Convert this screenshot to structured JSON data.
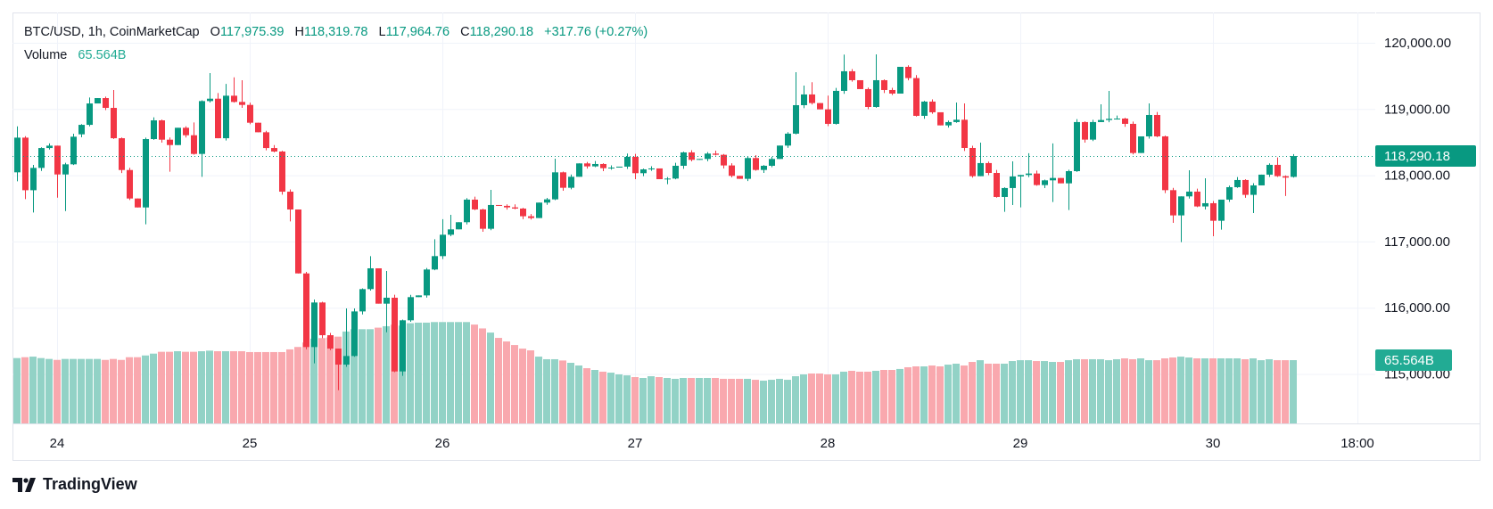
{
  "header": {
    "symbol": "BTC/USD, 1h, CoinMarketCap",
    "o_label": "O",
    "o": "117,975.39",
    "h_label": "H",
    "h": "118,319.78",
    "l_label": "L",
    "l": "117,964.76",
    "c_label": "C",
    "c": "118,290.18",
    "change": "+317.76 (+0.27%)"
  },
  "volume_legend": {
    "label": "Volume",
    "value": "65.564B"
  },
  "price_axis": {
    "ticks": [
      "120,000.00",
      "119,000.00",
      "118,000.00",
      "117,000.00",
      "116,000.00",
      "115,000.00"
    ],
    "last_price_label": "118,290.18",
    "volume_label": "65.564B"
  },
  "time_axis": {
    "ticks": [
      "24",
      "25",
      "26",
      "27",
      "28",
      "29",
      "30",
      "18:00"
    ]
  },
  "branding": {
    "logo_text": "TradingView"
  },
  "colors": {
    "up": "#089981",
    "down": "#f23645",
    "volume_up": "#92d2c6",
    "volume_down": "#f9a8ae",
    "grid": "#f0f3fa",
    "border": "#e0e3eb",
    "text": "#131722",
    "volume_tag": "#22ab94"
  },
  "chart_data": {
    "type": "candlestick",
    "title": "BTC/USD, 1h, CoinMarketCap",
    "interval": "1h",
    "ylim": [
      114450,
      120400
    ],
    "price_ticks": [
      120000,
      119000,
      118000,
      117000,
      116000,
      115000
    ],
    "time_tick_labels": [
      "24",
      "25",
      "26",
      "27",
      "28",
      "29",
      "30",
      "18:00"
    ],
    "time_tick_candle_index": [
      5,
      29,
      53,
      77,
      101,
      125,
      149,
      167
    ],
    "last": {
      "open": 117975.39,
      "high": 118319.78,
      "low": 117964.76,
      "close": 118290.18,
      "change": 317.76,
      "change_pct": 0.27,
      "volume_b": 65.564
    },
    "first_open": 118044,
    "open_overrides": {
      "8": 118618,
      "159": 117975.39
    },
    "close": [
      118568,
      117774,
      118111,
      118411,
      118447,
      118012,
      118165,
      118582,
      118761,
      119084,
      119165,
      119017,
      118559,
      118079,
      117649,
      117514,
      118546,
      118829,
      118537,
      118456,
      118717,
      118604,
      118322,
      119120,
      119156,
      118559,
      119201,
      119107,
      119062,
      118793,
      118649,
      118411,
      118358,
      117752,
      117483,
      116518,
      115406,
      116079,
      115585,
      115383,
      115141,
      115271,
      115944,
      116281,
      116595,
      116061,
      116151,
      115038,
      115810,
      116160,
      116186,
      116577,
      116779,
      117102,
      117183,
      117291,
      117632,
      117484,
      117192,
      117551,
      117538,
      117515,
      117497,
      117381,
      117354,
      117587,
      117636,
      118044,
      117811,
      117977,
      118179,
      118134,
      118170,
      118107,
      118116,
      118130,
      118278,
      118031,
      118089,
      118103,
      117941,
      117950,
      118143,
      118345,
      118233,
      118246,
      118327,
      118309,
      118148,
      117991,
      117946,
      118260,
      118080,
      118143,
      118246,
      118448,
      118628,
      119058,
      119220,
      119090,
      118995,
      118776,
      119274,
      119570,
      119435,
      119301,
      119031,
      119435,
      119287,
      119233,
      119637,
      119467,
      118897,
      119112,
      118951,
      118753,
      118803,
      118838,
      118412,
      117986,
      118184,
      118035,
      117672,
      117807,
      117982,
      118004,
      118026,
      117852,
      117923,
      117959,
      117878,
      118062,
      118803,
      118538,
      118803,
      118834,
      118852,
      118856,
      118776,
      118336,
      118587,
      118910,
      118587,
      117775,
      117394,
      117681,
      117753,
      117529,
      117578,
      117313,
      117632,
      117820,
      117928,
      117704,
      117847,
      118009,
      118157,
      117986,
      117964,
      118290.18
    ],
    "default_wick": 45,
    "wick_overrides": {
      "0": [
        118739,
        117909
      ],
      "1": [
        null,
        117640
      ],
      "2": [
        null,
        117438
      ],
      "5": [
        null,
        117662
      ],
      "6": [
        null,
        117460
      ],
      "9": [
        119174,
        null
      ],
      "12": [
        119286,
        null
      ],
      "16": [
        null,
        117259
      ],
      "19": [
        null,
        118053
      ],
      "22": [
        118797,
        null
      ],
      "23": [
        null,
        117976
      ],
      "24": [
        119542,
        null
      ],
      "25": [
        119241,
        null
      ],
      "26": [
        119380,
        null
      ],
      "27": [
        119479,
        null
      ],
      "28": [
        119434,
        null
      ],
      "34": [
        null,
        117303
      ],
      "37": [
        null,
        115159
      ],
      "40": [
        null,
        114755
      ],
      "41": [
        115989,
        null
      ],
      "44": [
        116778,
        null
      ],
      "46": [
        116554,
        115630
      ],
      "48": [
        null,
        114971
      ],
      "52": [
        117034,
        null
      ],
      "53": [
        117336,
        null
      ],
      "54": [
        117403,
        null
      ],
      "59": [
        117780,
        null
      ],
      "67": [
        118251,
        null
      ],
      "76": [
        118327,
        null
      ],
      "77": [
        null,
        117941
      ],
      "81": [
        null,
        117865
      ],
      "97": [
        119556,
        null
      ],
      "98": [
        119354,
        null
      ],
      "99": [
        119404,
        null
      ],
      "101": [
        119202,
        null
      ],
      "103": [
        119821,
        null
      ],
      "107": [
        119825,
        null
      ],
      "117": [
        119099,
        null
      ],
      "118": [
        119085,
        null
      ],
      "120": [
        118493,
        null
      ],
      "123": [
        null,
        117448
      ],
      "124": [
        118210,
        117551
      ],
      "125": [
        null,
        117515
      ],
      "126": [
        118332,
        null
      ],
      "129": [
        118480,
        117596
      ],
      "131": [
        null,
        117475
      ],
      "135": [
        119072,
        null
      ],
      "136": [
        119274,
        null
      ],
      "141": [
        119085,
        null
      ],
      "144": [
        null,
        117282
      ],
      "145": [
        null,
        116990
      ],
      "146": [
        118076,
        null
      ],
      "148": [
        117955,
        null
      ],
      "149": [
        null,
        117080
      ],
      "150": [
        null,
        117179
      ],
      "154": [
        null,
        117430
      ],
      "157": [
        118269,
        null
      ],
      "158": [
        null,
        117686
      ],
      "159": [
        118319.78,
        117964.76
      ]
    },
    "volume_unit": "B",
    "volume": [
      67.7,
      68.6,
      69.2,
      67.7,
      66.8,
      65.8,
      66.8,
      66.8,
      66.8,
      66.8,
      66.8,
      65.8,
      66.8,
      65.8,
      68.6,
      68.6,
      70.4,
      72.3,
      74.2,
      74.2,
      74.8,
      74.2,
      74.2,
      74.8,
      75.4,
      74.8,
      74.8,
      74.8,
      74.8,
      73.9,
      73.9,
      73.9,
      73.9,
      73.9,
      76.7,
      79.2,
      83.8,
      87.8,
      88.4,
      89.0,
      89.9,
      95.2,
      97.6,
      97.6,
      97.6,
      99.2,
      100.7,
      102.3,
      101.3,
      103.8,
      104.4,
      104.4,
      105.0,
      105.0,
      105.0,
      105.0,
      105.0,
      102.4,
      98.4,
      94.1,
      88.6,
      84.9,
      81.2,
      77.5,
      75.7,
      69.2,
      66.5,
      66.5,
      65.2,
      62.8,
      60.0,
      57.2,
      55.4,
      53.6,
      52.6,
      50.8,
      49.8,
      48.0,
      47.1,
      48.9,
      48.0,
      47.1,
      46.2,
      47.1,
      47.1,
      47.1,
      47.1,
      47.1,
      46.2,
      46.2,
      46.2,
      46.2,
      45.2,
      44.3,
      45.2,
      46.2,
      45.2,
      48.9,
      50.8,
      51.7,
      51.7,
      50.8,
      50.8,
      53.6,
      54.5,
      53.6,
      53.6,
      54.5,
      55.4,
      55.4,
      56.4,
      58.2,
      59.1,
      59.1,
      60.0,
      59.1,
      60.9,
      61.9,
      60.0,
      63.7,
      65.5,
      61.9,
      61.9,
      61.9,
      64.6,
      65.5,
      65.5,
      64.6,
      64.6,
      63.7,
      63.7,
      65.5,
      66.5,
      66.5,
      66.5,
      66.5,
      65.5,
      66.5,
      67.4,
      66.5,
      67.4,
      65.5,
      65.5,
      67.4,
      68.3,
      69.2,
      68.3,
      67.4,
      67.4,
      67.4,
      67.4,
      67.4,
      67.4,
      66.5,
      67.4,
      65.5,
      66.5,
      65.5,
      65.5,
      65.564
    ]
  }
}
